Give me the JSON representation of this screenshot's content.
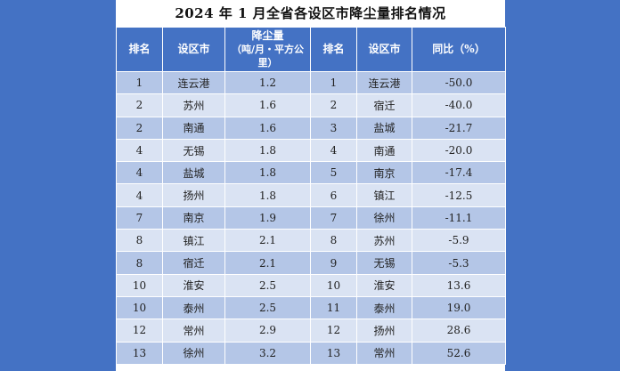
{
  "title": "2024 年 1 月全省各设区市降尘量排名情况",
  "headers": {
    "rank": "排名",
    "city": "设区市",
    "dust_line1": "降尘量",
    "dust_line2": "（吨/月・平方公里）",
    "rank2": "排名",
    "city2": "设区市",
    "yoy": "同比（%）"
  },
  "rows": [
    {
      "rank": "1",
      "city": "连云港",
      "dust": "1.2",
      "rank2": "1",
      "city2": "连云港",
      "yoy": "-50.0"
    },
    {
      "rank": "2",
      "city": "苏州",
      "dust": "1.6",
      "rank2": "2",
      "city2": "宿迁",
      "yoy": "-40.0"
    },
    {
      "rank": "2",
      "city": "南通",
      "dust": "1.6",
      "rank2": "3",
      "city2": "盐城",
      "yoy": "-21.7"
    },
    {
      "rank": "4",
      "city": "无锡",
      "dust": "1.8",
      "rank2": "4",
      "city2": "南通",
      "yoy": "-20.0"
    },
    {
      "rank": "4",
      "city": "盐城",
      "dust": "1.8",
      "rank2": "5",
      "city2": "南京",
      "yoy": "-17.4"
    },
    {
      "rank": "4",
      "city": "扬州",
      "dust": "1.8",
      "rank2": "6",
      "city2": "镇江",
      "yoy": "-12.5"
    },
    {
      "rank": "7",
      "city": "南京",
      "dust": "1.9",
      "rank2": "7",
      "city2": "徐州",
      "yoy": "-11.1"
    },
    {
      "rank": "8",
      "city": "镇江",
      "dust": "2.1",
      "rank2": "8",
      "city2": "苏州",
      "yoy": "-5.9"
    },
    {
      "rank": "8",
      "city": "宿迁",
      "dust": "2.1",
      "rank2": "9",
      "city2": "无锡",
      "yoy": "-5.3"
    },
    {
      "rank": "10",
      "city": "淮安",
      "dust": "2.5",
      "rank2": "10",
      "city2": "淮安",
      "yoy": "13.6"
    },
    {
      "rank": "10",
      "city": "泰州",
      "dust": "2.5",
      "rank2": "11",
      "city2": "泰州",
      "yoy": "19.0"
    },
    {
      "rank": "12",
      "city": "常州",
      "dust": "2.9",
      "rank2": "12",
      "city2": "扬州",
      "yoy": "28.6"
    },
    {
      "rank": "13",
      "city": "徐州",
      "dust": "3.2",
      "rank2": "13",
      "city2": "常州",
      "yoy": "52.6"
    }
  ],
  "colors": {
    "background": "#4472c4",
    "header": "#4472c4",
    "row_dark": "#b4c6e7",
    "row_light": "#dae3f3"
  }
}
